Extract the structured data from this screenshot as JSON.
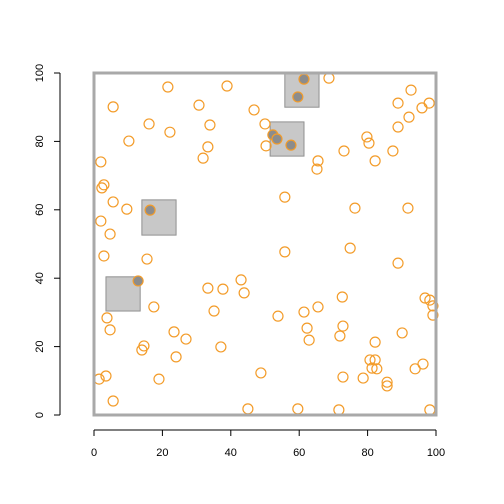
{
  "chart_data": {
    "type": "scatter",
    "xlim": [
      0,
      100
    ],
    "ylim": [
      0,
      100
    ],
    "xticks": [
      0,
      20,
      40,
      60,
      80,
      100
    ],
    "yticks": [
      0,
      20,
      40,
      60,
      80,
      100
    ],
    "box_color": "#a9a9a9",
    "regions": [
      {
        "x": [
          55.8,
          65.8
        ],
        "y": [
          90,
          100
        ]
      },
      {
        "x": [
          51.5,
          61.4
        ],
        "y": [
          75.7,
          85.7
        ]
      },
      {
        "x": [
          14,
          24
        ],
        "y": [
          52.6,
          62.9
        ]
      },
      {
        "x": [
          3.5,
          13.5
        ],
        "y": [
          30.4,
          40.4
        ]
      }
    ],
    "region_color": "#c8c8c8",
    "series": [
      {
        "color": "#f39c2a",
        "fill": "none",
        "x": [
          68.7,
          21.6,
          38.9,
          92.7,
          98.0,
          88.9,
          95.9,
          5.6,
          30.7,
          46.8,
          16.1,
          33.9,
          50.0,
          22.2,
          10.2,
          79.8,
          80.4,
          88.9,
          92.1,
          50.3,
          33.3,
          31.9,
          73.1,
          87.4,
          82.2,
          65.5,
          65.2,
          2.0,
          2.3,
          2.9,
          5.6,
          9.6,
          55.8,
          76.3,
          91.8,
          2.0,
          4.7,
          2.9,
          15.5,
          55.8,
          74.9,
          88.9,
          43.0,
          43.9,
          33.3,
          37.7,
          17.5,
          35.1,
          53.8,
          65.5,
          72.6,
          61.4,
          96.8,
          98.2,
          99.1,
          99.1,
          3.8,
          4.7,
          23.4,
          26.9,
          62.3,
          62.9,
          72.8,
          71.9,
          82.2,
          90.1,
          14.6,
          14.0,
          24.0,
          37.1,
          80.7,
          82.2,
          81.3,
          82.7,
          96.2,
          93.9,
          1.5,
          3.5,
          19.0,
          48.8,
          72.8,
          78.7,
          85.7,
          85.7,
          5.6,
          45.0,
          59.6,
          71.6,
          98.2
        ],
        "values": [
          98.5,
          95.9,
          96.2,
          95.0,
          91.2,
          91.2,
          89.8,
          90.1,
          90.6,
          89.2,
          85.1,
          84.8,
          85.1,
          82.7,
          80.1,
          81.3,
          79.5,
          84.2,
          87.1,
          78.7,
          78.4,
          75.1,
          77.2,
          77.2,
          74.3,
          74.3,
          71.9,
          74.0,
          66.4,
          67.3,
          62.3,
          60.2,
          63.7,
          60.5,
          60.5,
          56.7,
          52.9,
          46.5,
          45.6,
          47.7,
          48.8,
          44.4,
          39.5,
          35.7,
          37.1,
          36.8,
          31.6,
          30.4,
          28.9,
          31.6,
          34.5,
          30.1,
          34.2,
          33.6,
          31.9,
          29.2,
          28.4,
          24.9,
          24.3,
          22.2,
          25.4,
          21.9,
          26.0,
          23.1,
          21.3,
          24.0,
          20.2,
          19.0,
          17.0,
          19.9,
          16.1,
          16.1,
          13.7,
          13.5,
          14.9,
          13.5,
          10.5,
          11.4,
          10.5,
          12.3,
          11.1,
          10.8,
          9.6,
          8.5,
          4.1,
          1.8,
          1.8,
          1.5,
          1.5
        ]
      },
      {
        "color": "#f39c2a",
        "fill": "#8c8c8c",
        "x": [
          61.4,
          59.6,
          52.3,
          53.5,
          57.6,
          16.4,
          12.9
        ],
        "values": [
          98.2,
          93.0,
          81.9,
          80.7,
          78.9,
          59.9,
          39.2
        ]
      }
    ]
  }
}
